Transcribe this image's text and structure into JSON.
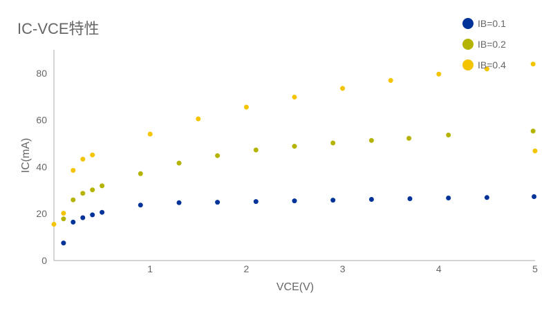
{
  "chart_data": {
    "type": "scatter",
    "title": "IC-VCE特性",
    "xlabel": "VCE(V)",
    "ylabel": "IC(mA)",
    "xlim": [
      0,
      5
    ],
    "ylim": [
      0,
      90
    ],
    "xticks": [
      1,
      2,
      3,
      4,
      5
    ],
    "yticks": [
      0,
      20,
      40,
      60,
      80
    ],
    "grid": false,
    "legend_position": "top-right",
    "series": [
      {
        "name": "IB=0.1",
        "color": "#003399",
        "points": [
          [
            0.1,
            7.5
          ],
          [
            0.2,
            16.4
          ],
          [
            0.3,
            18.3
          ],
          [
            0.4,
            19.5
          ],
          [
            0.5,
            20.6
          ],
          [
            0.9,
            23.7
          ],
          [
            1.3,
            24.7
          ],
          [
            1.7,
            24.9
          ],
          [
            2.1,
            25.2
          ],
          [
            2.5,
            25.5
          ],
          [
            2.9,
            25.8
          ],
          [
            3.3,
            26.1
          ],
          [
            3.7,
            26.4
          ],
          [
            4.1,
            26.7
          ],
          [
            4.5,
            26.9
          ],
          [
            4.99,
            27.3
          ]
        ]
      },
      {
        "name": "IB=0.2",
        "color": "#b3b300",
        "points": [
          [
            0.1,
            17.8
          ],
          [
            0.2,
            25.9
          ],
          [
            0.3,
            28.7
          ],
          [
            0.4,
            30.2
          ],
          [
            0.5,
            31.9
          ],
          [
            0.9,
            37.1
          ],
          [
            1.3,
            41.6
          ],
          [
            1.7,
            44.8
          ],
          [
            2.1,
            47.2
          ],
          [
            2.5,
            48.8
          ],
          [
            2.9,
            50.2
          ],
          [
            3.3,
            51.3
          ],
          [
            3.69,
            52.2
          ],
          [
            4.1,
            53.6
          ],
          [
            4.98,
            55.3
          ]
        ]
      },
      {
        "name": "IB=0.4",
        "color": "#f5c400",
        "points": [
          [
            0.0,
            15.5
          ],
          [
            0.1,
            20.2
          ],
          [
            0.2,
            38.5
          ],
          [
            0.3,
            43.3
          ],
          [
            0.4,
            45.1
          ],
          [
            1.0,
            54.0
          ],
          [
            1.5,
            60.5
          ],
          [
            2.0,
            65.5
          ],
          [
            2.5,
            69.8
          ],
          [
            3.0,
            73.5
          ],
          [
            3.5,
            76.9
          ],
          [
            4.0,
            79.6
          ],
          [
            4.5,
            81.8
          ],
          [
            4.98,
            83.9
          ],
          [
            5.0,
            46.8
          ]
        ]
      }
    ]
  }
}
